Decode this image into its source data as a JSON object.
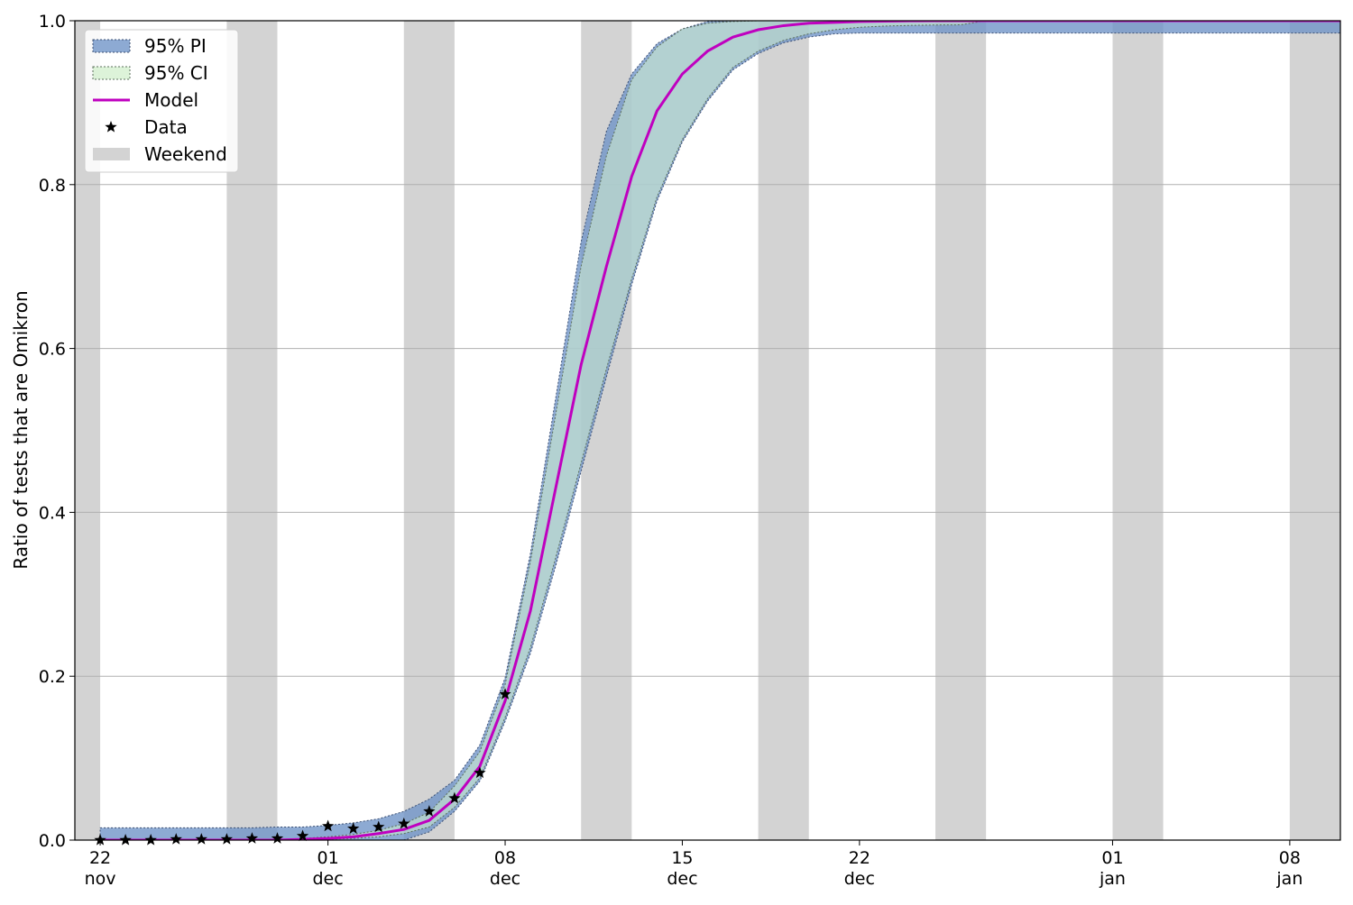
{
  "chart_data": {
    "type": "line",
    "title": "",
    "xlabel": "",
    "ylabel": "Ratio of tests that are Omikron",
    "ylim": [
      0.0,
      1.0
    ],
    "xlim": [
      "2021-11-21",
      "2022-01-10"
    ],
    "grid": "horizontal",
    "legend_position": "top-left",
    "y_ticks": [
      {
        "value": 0.0,
        "label": "0.0"
      },
      {
        "value": 0.2,
        "label": "0.2"
      },
      {
        "value": 0.4,
        "label": "0.4"
      },
      {
        "value": 0.6,
        "label": "0.6"
      },
      {
        "value": 0.8,
        "label": "0.8"
      },
      {
        "value": 1.0,
        "label": "1.0"
      }
    ],
    "x_ticks": [
      {
        "date": "2021-11-22",
        "day": "22",
        "month": "nov"
      },
      {
        "date": "2021-12-01",
        "day": "01",
        "month": "dec"
      },
      {
        "date": "2021-12-08",
        "day": "08",
        "month": "dec"
      },
      {
        "date": "2021-12-15",
        "day": "15",
        "month": "dec"
      },
      {
        "date": "2021-12-22",
        "day": "22",
        "month": "dec"
      },
      {
        "date": "2022-01-01",
        "day": "01",
        "month": "jan"
      },
      {
        "date": "2022-01-08",
        "day": "08",
        "month": "jan"
      }
    ],
    "weekends": [
      [
        "2021-11-20",
        "2021-11-22"
      ],
      [
        "2021-11-27",
        "2021-11-29"
      ],
      [
        "2021-12-04",
        "2021-12-06"
      ],
      [
        "2021-12-11",
        "2021-12-13"
      ],
      [
        "2021-12-18",
        "2021-12-20"
      ],
      [
        "2021-12-25",
        "2021-12-27"
      ],
      [
        "2022-01-01",
        "2022-01-03"
      ],
      [
        "2022-01-08",
        "2022-01-10"
      ]
    ],
    "legend": [
      {
        "key": "pi",
        "label": "95% PI"
      },
      {
        "key": "ci",
        "label": "95% CI"
      },
      {
        "key": "model",
        "label": "Model"
      },
      {
        "key": "data",
        "label": "Data"
      },
      {
        "key": "weekend",
        "label": "Weekend"
      }
    ],
    "series": {
      "model": {
        "name": "Model",
        "color": "#bf00bf",
        "x": [
          "2021-11-22",
          "2021-11-23",
          "2021-11-24",
          "2021-11-25",
          "2021-11-26",
          "2021-11-27",
          "2021-11-28",
          "2021-11-29",
          "2021-11-30",
          "2021-12-01",
          "2021-12-02",
          "2021-12-03",
          "2021-12-04",
          "2021-12-05",
          "2021-12-06",
          "2021-12-07",
          "2021-12-08",
          "2021-12-09",
          "2021-12-10",
          "2021-12-11",
          "2021-12-12",
          "2021-12-13",
          "2021-12-14",
          "2021-12-15",
          "2021-12-16",
          "2021-12-17",
          "2021-12-18",
          "2021-12-19",
          "2021-12-20",
          "2021-12-21",
          "2021-12-22",
          "2021-12-23",
          "2021-12-24",
          "2021-12-25",
          "2021-12-26",
          "2021-12-27",
          "2021-12-28",
          "2021-12-29",
          "2021-12-30",
          "2021-12-31",
          "2022-01-01",
          "2022-01-02",
          "2022-01-03",
          "2022-01-04",
          "2022-01-05",
          "2022-01-06",
          "2022-01-07",
          "2022-01-08",
          "2022-01-09",
          "2022-01-10"
        ],
        "y": [
          0.0,
          0.0,
          0.0,
          0.0,
          0.0,
          0.0,
          0.0,
          0.0,
          0.001,
          0.002,
          0.004,
          0.008,
          0.013,
          0.024,
          0.05,
          0.09,
          0.17,
          0.28,
          0.43,
          0.58,
          0.7,
          0.81,
          0.89,
          0.935,
          0.963,
          0.98,
          0.989,
          0.994,
          0.997,
          0.998,
          0.999,
          0.9995,
          0.9998,
          1.0,
          1.0,
          1.0,
          1.0,
          1.0,
          1.0,
          1.0,
          1.0,
          1.0,
          1.0,
          1.0,
          1.0,
          1.0,
          1.0,
          1.0,
          1.0,
          1.0
        ]
      },
      "ci": {
        "name": "95% CI",
        "color": "#d4f0d0",
        "lower": [
          0.0,
          0.0,
          0.0,
          0.0,
          0.0,
          0.0,
          0.0,
          0.0,
          0.0,
          0.001,
          0.002,
          0.004,
          0.008,
          0.016,
          0.04,
          0.076,
          0.15,
          0.235,
          0.345,
          0.46,
          0.575,
          0.685,
          0.785,
          0.855,
          0.905,
          0.943,
          0.963,
          0.976,
          0.984,
          0.989,
          0.992,
          0.9935,
          0.9943,
          0.9948,
          0.995,
          1.0,
          1.0,
          1.0,
          1.0,
          1.0,
          1.0,
          1.0,
          1.0,
          1.0,
          1.0,
          1.0,
          1.0,
          1.0,
          1.0,
          1.0
        ],
        "upper": [
          0.0,
          0.0,
          0.0,
          0.0,
          0.0,
          0.0,
          0.0,
          0.0,
          0.002,
          0.004,
          0.007,
          0.012,
          0.02,
          0.034,
          0.066,
          0.108,
          0.19,
          0.34,
          0.52,
          0.7,
          0.835,
          0.928,
          0.968,
          0.99,
          0.997,
          0.999,
          1.0,
          1.0,
          1.0,
          1.0,
          1.0,
          1.0,
          1.0,
          1.0,
          1.0,
          1.0,
          1.0,
          1.0,
          1.0,
          1.0,
          1.0,
          1.0,
          1.0,
          1.0,
          1.0,
          1.0,
          1.0,
          1.0,
          1.0,
          1.0
        ]
      },
      "pi": {
        "name": "95% PI",
        "color": "#7195c8",
        "lower": [
          0.0,
          0.0,
          0.0,
          0.0,
          0.0,
          0.0,
          0.0,
          0.0,
          0.0,
          0.0,
          0.0,
          0.0,
          0.0,
          0.01,
          0.035,
          0.072,
          0.145,
          0.228,
          0.335,
          0.45,
          0.565,
          0.678,
          0.78,
          0.852,
          0.902,
          0.94,
          0.96,
          0.973,
          0.98,
          0.984,
          0.985,
          0.985,
          0.985,
          0.985,
          0.985,
          0.985,
          0.985,
          0.985,
          0.985,
          0.985,
          0.985,
          0.985,
          0.985,
          0.985,
          0.985,
          0.985,
          0.985,
          0.985,
          0.985,
          0.985
        ],
        "upper": [
          0.015,
          0.015,
          0.015,
          0.015,
          0.015,
          0.015,
          0.015,
          0.016,
          0.016,
          0.018,
          0.021,
          0.026,
          0.035,
          0.05,
          0.073,
          0.116,
          0.198,
          0.35,
          0.54,
          0.73,
          0.865,
          0.935,
          0.972,
          0.99,
          0.999,
          1.0,
          1.0,
          1.0,
          1.0,
          1.0,
          1.0,
          1.0,
          1.0,
          1.0,
          1.0,
          1.0,
          1.0,
          1.0,
          1.0,
          1.0,
          1.0,
          1.0,
          1.0,
          1.0,
          1.0,
          1.0,
          1.0,
          1.0,
          1.0,
          1.0
        ]
      },
      "data": {
        "name": "Data",
        "color": "#000000",
        "x": [
          "2021-11-22",
          "2021-11-23",
          "2021-11-24",
          "2021-11-25",
          "2021-11-26",
          "2021-11-27",
          "2021-11-28",
          "2021-11-29",
          "2021-11-30",
          "2021-12-01",
          "2021-12-02",
          "2021-12-03",
          "2021-12-04",
          "2021-12-05",
          "2021-12-06",
          "2021-12-07",
          "2021-12-08"
        ],
        "y": [
          0.0,
          0.0,
          0.0,
          0.001,
          0.001,
          0.001,
          0.002,
          0.002,
          0.005,
          0.017,
          0.014,
          0.016,
          0.02,
          0.035,
          0.051,
          0.082,
          0.178
        ]
      }
    },
    "colors": {
      "model": "#bf00bf",
      "ci_fill": "#d4f0d0",
      "pi_fill": "#7195c8",
      "weekend": "#d3d3d3",
      "grid": "#b0b0b0",
      "data": "#000000"
    }
  }
}
